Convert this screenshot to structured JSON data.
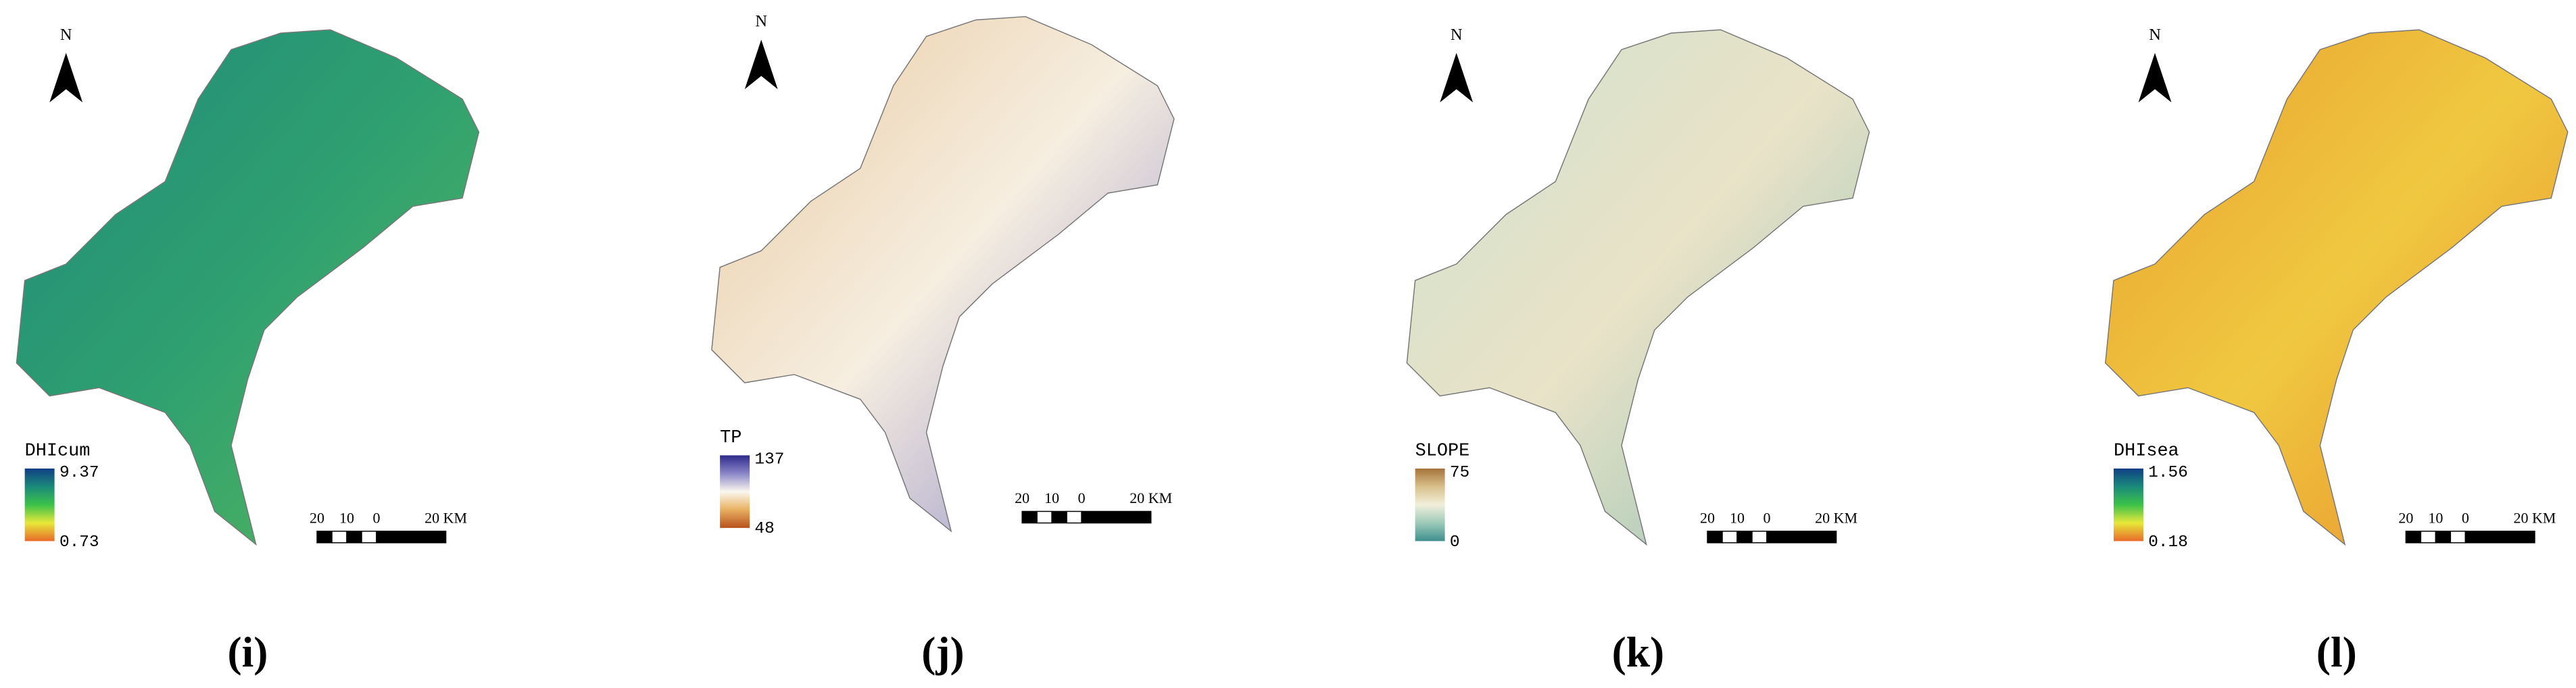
{
  "panels": [
    {
      "north": "N",
      "legend_title": "DHIcum",
      "legend_max": "9.37",
      "legend_min": "0.73",
      "scale_labels": [
        "20",
        "10",
        "0",
        "20 KM"
      ],
      "label": "(i)"
    },
    {
      "north": "N",
      "legend_title": "TP",
      "legend_max": "137",
      "legend_min": "48",
      "scale_labels": [
        "20",
        "10",
        "0",
        "20 KM"
      ],
      "label": "(j)"
    },
    {
      "north": "N",
      "legend_title": "SLOPE",
      "legend_max": "75",
      "legend_min": "0",
      "scale_labels": [
        "20",
        "10",
        "0",
        "20 KM"
      ],
      "label": "(k)"
    },
    {
      "north": "N",
      "legend_title": "DHIsea",
      "legend_max": "1.56",
      "legend_min": "0.18",
      "scale_labels": [
        "20",
        "10",
        "0",
        "20 KM"
      ],
      "label": "(l)"
    }
  ]
}
